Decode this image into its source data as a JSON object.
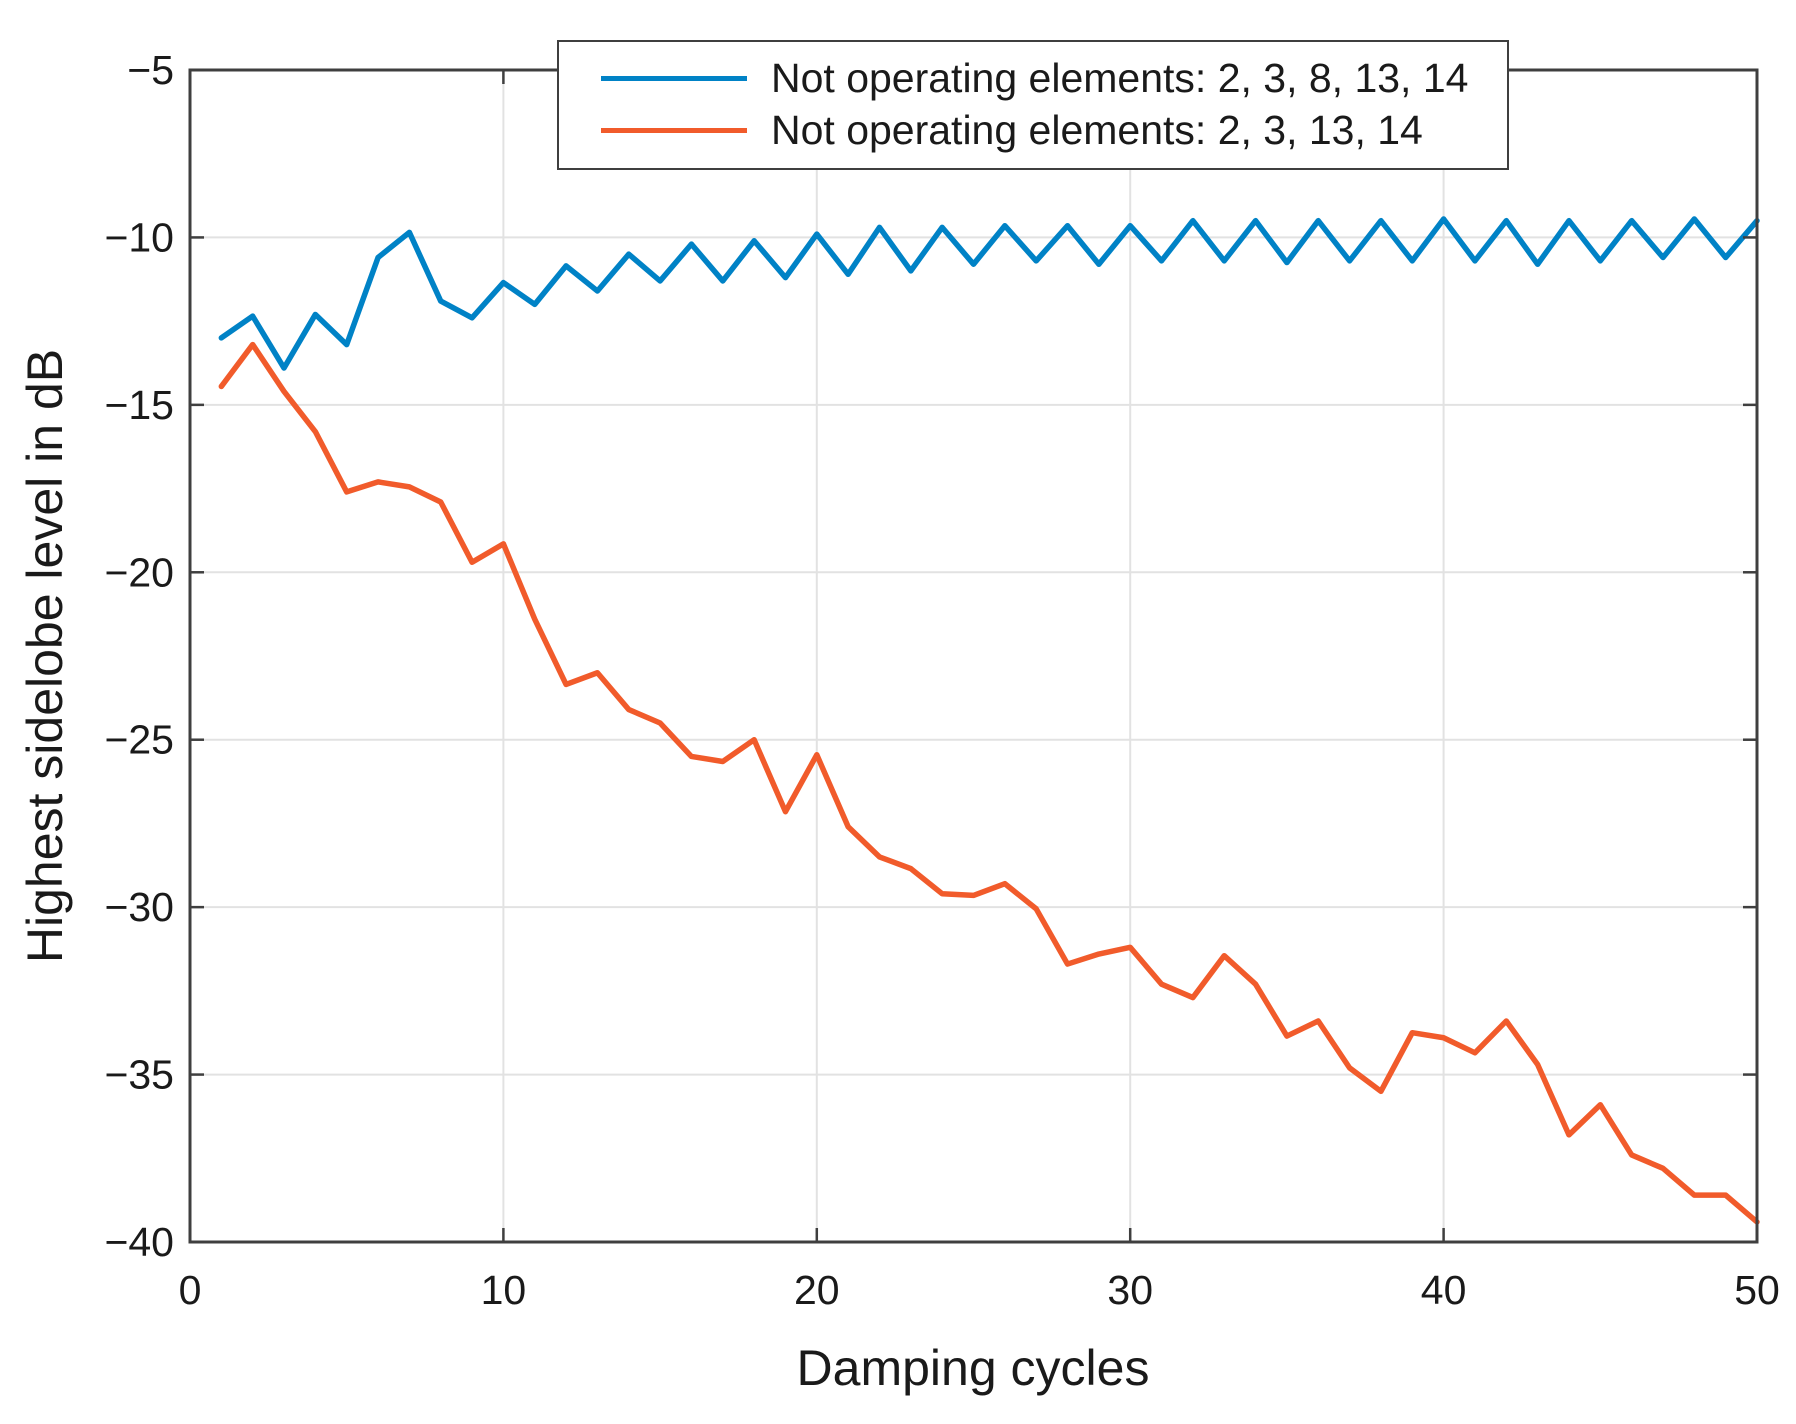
{
  "chart_data": {
    "type": "line",
    "title": "",
    "xlabel": "Damping cycles",
    "ylabel": "Highest sidelobe level in dB",
    "xlim": [
      0,
      50
    ],
    "ylim": [
      -40,
      -5
    ],
    "xticks": [
      0,
      10,
      20,
      30,
      40,
      50
    ],
    "yticks": [
      -40,
      -35,
      -30,
      -25,
      -20,
      -15,
      -10,
      -5
    ],
    "grid": true,
    "legend_position": "top-center",
    "x": [
      1,
      2,
      3,
      4,
      5,
      6,
      7,
      8,
      9,
      10,
      11,
      12,
      13,
      14,
      15,
      16,
      17,
      18,
      19,
      20,
      21,
      22,
      23,
      24,
      25,
      26,
      27,
      28,
      29,
      30,
      31,
      32,
      33,
      34,
      35,
      36,
      37,
      38,
      39,
      40,
      41,
      42,
      43,
      44,
      45,
      46,
      47,
      48,
      49,
      50
    ],
    "series": [
      {
        "name": "Not operating elements: 2, 3, 8, 13, 14",
        "color": "#0082c6",
        "values": [
          -13.0,
          -12.35,
          -13.9,
          -12.3,
          -13.2,
          -10.6,
          -9.85,
          -11.9,
          -12.4,
          -11.35,
          -12.0,
          -10.85,
          -11.6,
          -10.5,
          -11.3,
          -10.2,
          -11.3,
          -10.1,
          -11.2,
          -9.9,
          -11.1,
          -9.7,
          -11.0,
          -9.7,
          -10.8,
          -9.65,
          -10.7,
          -9.65,
          -10.8,
          -9.65,
          -10.7,
          -9.5,
          -10.7,
          -9.5,
          -10.75,
          -9.5,
          -10.7,
          -9.5,
          -10.7,
          -9.45,
          -10.7,
          -9.5,
          -10.8,
          -9.5,
          -10.7,
          -9.5,
          -10.6,
          -9.45,
          -10.6,
          -9.5
        ]
      },
      {
        "name": "Not operating elements: 2, 3, 13, 14",
        "color": "#f15b2b",
        "values": [
          -14.45,
          -13.2,
          -14.6,
          -15.8,
          -17.6,
          -17.3,
          -17.45,
          -17.9,
          -19.7,
          -19.15,
          -21.4,
          -23.35,
          -23.0,
          -24.1,
          -24.5,
          -25.5,
          -25.65,
          -25.0,
          -27.15,
          -25.45,
          -27.6,
          -28.5,
          -28.85,
          -29.6,
          -29.65,
          -29.3,
          -30.05,
          -31.7,
          -31.4,
          -31.2,
          -32.3,
          -32.7,
          -31.45,
          -32.3,
          -33.85,
          -33.4,
          -34.8,
          -35.5,
          -33.75,
          -33.9,
          -34.35,
          -33.4,
          -34.7,
          -36.8,
          -35.9,
          -37.4,
          -37.8,
          -38.6,
          -38.6,
          -39.4
        ]
      }
    ],
    "colors": {
      "grid": "#e2e2e2",
      "axis": "#3f3f3f",
      "tick_label": "#1a1a1a",
      "background": "#ffffff"
    }
  }
}
